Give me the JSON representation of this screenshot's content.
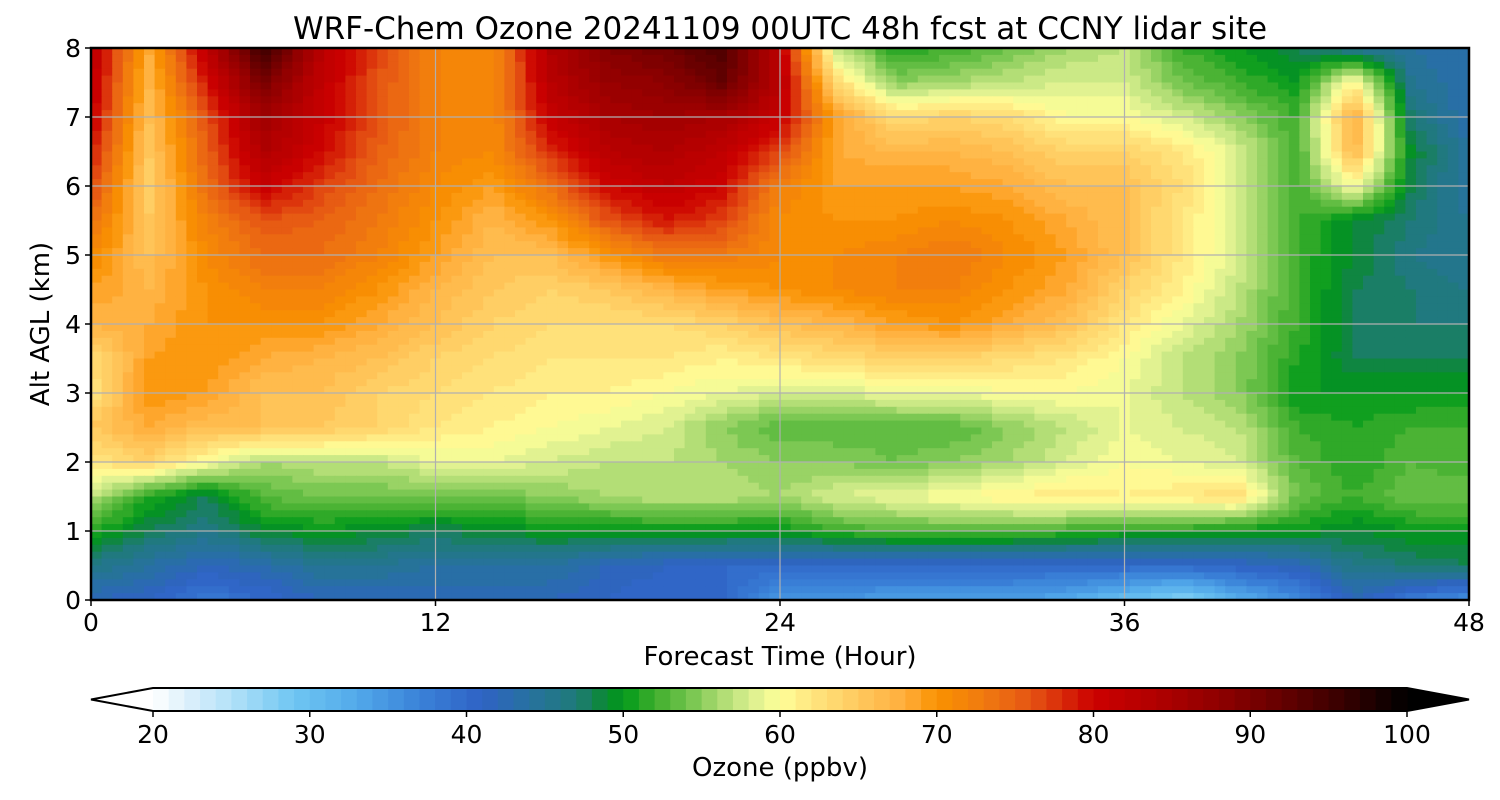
{
  "chart_data": {
    "type": "heatmap",
    "title": "WRF-Chem Ozone  20241109 00UTC 48h fcst at CCNY lidar site",
    "xlabel": "Forecast Time (Hour)",
    "ylabel": "Alt AGL (km)",
    "xlim": [
      0,
      48
    ],
    "ylim": [
      0,
      8
    ],
    "xticks": [
      "0",
      "12",
      "24",
      "36",
      "48"
    ],
    "yticks": [
      "0",
      "1",
      "2",
      "3",
      "4",
      "5",
      "6",
      "7",
      "8"
    ],
    "grid": true,
    "colorbar": {
      "label": "Ozone  (ppbv)",
      "range": [
        20,
        100
      ],
      "ticks": [
        "20",
        "30",
        "40",
        "50",
        "60",
        "70",
        "80",
        "90",
        "100"
      ],
      "extend": "both",
      "levels_step": 1
    },
    "z_units": "ppbv",
    "x": [
      0,
      2,
      4,
      6,
      8,
      10,
      12,
      14,
      16,
      18,
      20,
      22,
      24,
      26,
      28,
      30,
      32,
      34,
      36,
      38,
      40,
      42,
      44,
      46,
      48
    ],
    "y": [
      0,
      0.5,
      1,
      1.5,
      2,
      2.5,
      3,
      3.5,
      4,
      4.5,
      5,
      5.5,
      6,
      6.5,
      7,
      7.5,
      8
    ],
    "z": [
      [
        42,
        41,
        38,
        40,
        42,
        42,
        42,
        42,
        42,
        41,
        40,
        40,
        35,
        35,
        34,
        34,
        34,
        33,
        30,
        27,
        32,
        36,
        42,
        38,
        35
      ],
      [
        46,
        44,
        42,
        43,
        45,
        45,
        44,
        44,
        44,
        42,
        41,
        40,
        40,
        40,
        40,
        40,
        40,
        40,
        40,
        40,
        41,
        42,
        46,
        47,
        48
      ],
      [
        51,
        48,
        46,
        49,
        50,
        49,
        48,
        49,
        50,
        50,
        50,
        50,
        50,
        52,
        53,
        53,
        53,
        52,
        51,
        51,
        50,
        50,
        49,
        50,
        50
      ],
      [
        57,
        51,
        48,
        53,
        54,
        54,
        54,
        54,
        55,
        56,
        57,
        57,
        56,
        58,
        59,
        60,
        61,
        62,
        61,
        62,
        63,
        54,
        52,
        54,
        54
      ],
      [
        62,
        64,
        60,
        56,
        57,
        57,
        59,
        59,
        58,
        57,
        57,
        56,
        55,
        55,
        54,
        55,
        56,
        58,
        60,
        59,
        58,
        53,
        51,
        53,
        52
      ],
      [
        65,
        68,
        66,
        66,
        65,
        64,
        62,
        61,
        60,
        59,
        58,
        55,
        53,
        53,
        53,
        53,
        55,
        57,
        59,
        58,
        57,
        52,
        51,
        52,
        52
      ],
      [
        62,
        70,
        69,
        66,
        66,
        64,
        63,
        62,
        61,
        61,
        60,
        59,
        58,
        58,
        59,
        59,
        60,
        60,
        59,
        57,
        55,
        50,
        50,
        50,
        50
      ],
      [
        63,
        69,
        70,
        68,
        67,
        66,
        64,
        63,
        62,
        62,
        62,
        61,
        62,
        63,
        64,
        64,
        63,
        62,
        60,
        57,
        55,
        51,
        48,
        48,
        48
      ],
      [
        67,
        68,
        70,
        70,
        70,
        68,
        66,
        64,
        63,
        63,
        63,
        64,
        66,
        67,
        69,
        70,
        68,
        66,
        62,
        59,
        56,
        52,
        48,
        47,
        47
      ],
      [
        69,
        67,
        70,
        72,
        72,
        70,
        67,
        65,
        64,
        65,
        67,
        69,
        70,
        71,
        72,
        72,
        70,
        68,
        64,
        61,
        57,
        52,
        48,
        47,
        46
      ],
      [
        71,
        66,
        71,
        74,
        74,
        72,
        69,
        66,
        66,
        70,
        73,
        73,
        71,
        71,
        72,
        73,
        71,
        69,
        66,
        62,
        58,
        52,
        49,
        46,
        45
      ],
      [
        74,
        65,
        72,
        76,
        75,
        73,
        70,
        67,
        70,
        76,
        79,
        77,
        71,
        70,
        70,
        71,
        70,
        68,
        66,
        62,
        58,
        52,
        49,
        47,
        45
      ],
      [
        77,
        64,
        74,
        81,
        77,
        74,
        71,
        69,
        74,
        80,
        82,
        80,
        72,
        69,
        69,
        69,
        68,
        66,
        66,
        63,
        58,
        52,
        60,
        48,
        44
      ],
      [
        79,
        65,
        75,
        84,
        80,
        75,
        72,
        71,
        78,
        83,
        84,
        82,
        77,
        68,
        67,
        67,
        66,
        64,
        64,
        62,
        58,
        52,
        67,
        49,
        44
      ],
      [
        81,
        66,
        76,
        86,
        81,
        76,
        72,
        71,
        81,
        85,
        86,
        85,
        81,
        69,
        63,
        64,
        63,
        60,
        60,
        58,
        55,
        52,
        68,
        47,
        43
      ],
      [
        82,
        67,
        79,
        90,
        82,
        76,
        72,
        71,
        83,
        87,
        88,
        92,
        83,
        63,
        55,
        56,
        57,
        58,
        58,
        54,
        52,
        50,
        61,
        45,
        43
      ],
      [
        83,
        68,
        82,
        96,
        83,
        77,
        72,
        71,
        84,
        89,
        91,
        94,
        82,
        57,
        51,
        52,
        54,
        56,
        57,
        52,
        50,
        48,
        45,
        44,
        43
      ]
    ]
  }
}
